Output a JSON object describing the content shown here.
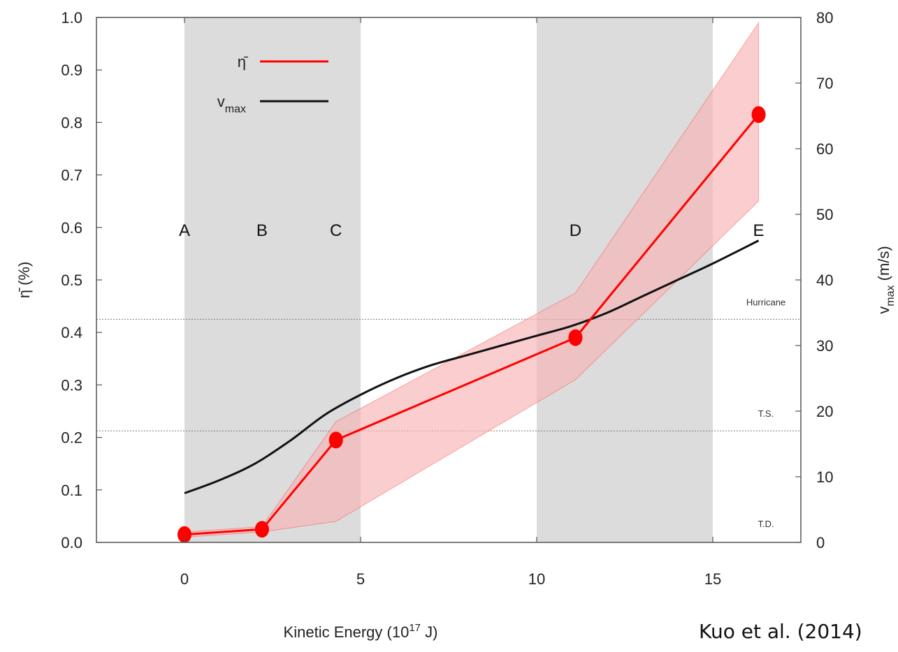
{
  "chart_data": {
    "type": "line",
    "xlabel_main": "Kinetic Energy (10",
    "xlabel_sup": "17",
    "xlabel_tail": " J)",
    "ylabel": "η̄ (%)",
    "y2label_main": "v",
    "y2label_sub": "max",
    "y2label_tail": " (m/s)",
    "xlim": [
      -2.5,
      17.5
    ],
    "ylim": [
      0,
      1
    ],
    "y2lim": [
      0,
      80
    ],
    "x_ticks": [
      0,
      5,
      10,
      15
    ],
    "x_tick_labels": [
      "0",
      "5",
      "10",
      "15"
    ],
    "y_ticks": [
      0,
      0.1,
      0.2,
      0.3,
      0.4,
      0.5,
      0.6,
      0.7,
      0.8,
      0.9,
      1.0
    ],
    "y_tick_labels": [
      "0.0",
      "0.1",
      "0.2",
      "0.3",
      "0.4",
      "0.5",
      "0.6",
      "0.7",
      "0.8",
      "0.9",
      "1.0"
    ],
    "y2_ticks": [
      0,
      10,
      20,
      30,
      40,
      50,
      60,
      70,
      80
    ],
    "y2_tick_labels": [
      "0",
      "10",
      "20",
      "30",
      "40",
      "50",
      "60",
      "70",
      "80"
    ],
    "shaded_regions": [
      {
        "x0": 0,
        "x1": 5
      },
      {
        "x0": 10,
        "x1": 15
      }
    ],
    "stages": [
      {
        "label": "A",
        "x": 0
      },
      {
        "label": "B",
        "x": 2.2
      },
      {
        "label": "C",
        "x": 4.3
      },
      {
        "label": "D",
        "x": 11.1
      },
      {
        "label": "E",
        "x": 16.3
      }
    ],
    "stage_label_y": 0.6,
    "thresholds": [
      {
        "label": "Hurricane",
        "y2": 34
      },
      {
        "label": "T.S.",
        "y2": 17
      },
      {
        "label": "T.D.",
        "y2": 0
      }
    ],
    "series": [
      {
        "name": "η̄",
        "axis": "left",
        "color": "#ff0000",
        "x": [
          0,
          2.2,
          4.3,
          11.1,
          16.3
        ],
        "y": [
          0.015,
          0.025,
          0.195,
          0.39,
          0.815
        ],
        "band_lower": [
          0.01,
          0.02,
          0.04,
          0.31,
          0.65
        ],
        "band_upper": [
          0.02,
          0.03,
          0.23,
          0.475,
          0.99
        ],
        "band_color": "#f8b4b4"
      },
      {
        "name": "v",
        "name_sub": "max",
        "axis": "right",
        "color": "#111111",
        "x": [
          0,
          1,
          2,
          3,
          4,
          5,
          6,
          7,
          8,
          9,
          10,
          11,
          12,
          13,
          14,
          15,
          16.3
        ],
        "y": [
          7.5,
          9.5,
          12,
          15.5,
          19.5,
          22.5,
          25,
          27,
          28.5,
          30,
          31.5,
          33,
          35,
          37.5,
          40,
          42.5,
          46
        ]
      }
    ],
    "legend_position": "top-left"
  },
  "citation": "Kuo et al. (2014)",
  "colors": {
    "shade": "#dcdcdc",
    "frame": "#555555",
    "threshold_line": "#777777"
  }
}
